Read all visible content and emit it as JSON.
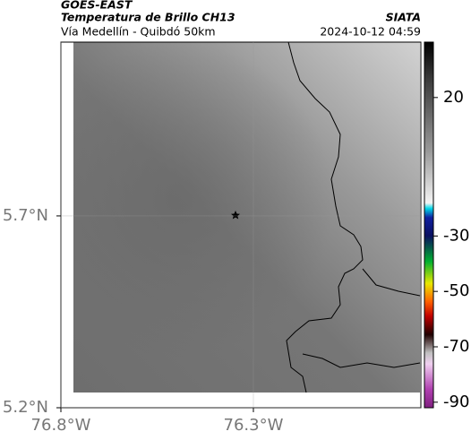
{
  "header": {
    "source": "GOES-EAST",
    "title": "Temperatura de Brillo CH13",
    "subtitle": "Vía Medellín - Quibdó 50km",
    "credit": "SIATA",
    "timestamp": "2024-10-12 04:59"
  },
  "map": {
    "xlim": [
      -76.8,
      -75.865
    ],
    "ylim": [
      5.2,
      6.153
    ],
    "xticks": [
      {
        "value": -76.8,
        "label": "76.8°W"
      },
      {
        "value": -76.3,
        "label": "76.3°W"
      }
    ],
    "yticks": [
      {
        "value": 5.7,
        "label": "5.7°N"
      },
      {
        "value": 5.2,
        "label": "5.2°N"
      }
    ]
  },
  "colorbar": {
    "lim": [
      -92,
      40
    ],
    "ticks": [
      20,
      -30,
      -50,
      -70,
      -90
    ]
  }
}
